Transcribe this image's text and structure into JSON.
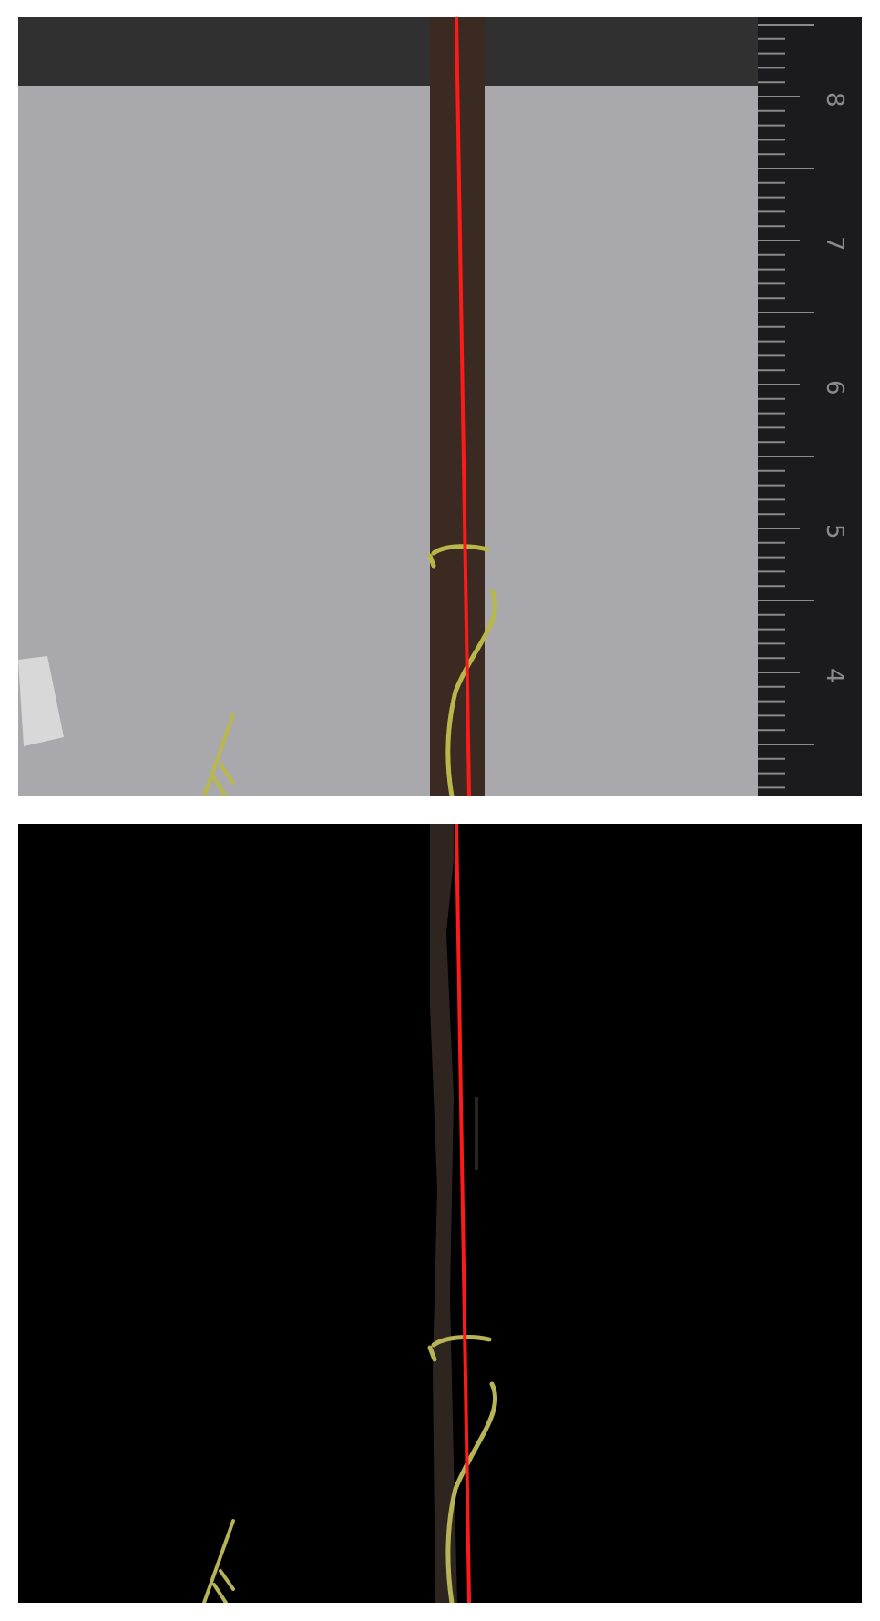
{
  "panels": [
    {
      "id": "original-photo",
      "ruler": {
        "labels": [
          "8",
          "7",
          "6",
          "5",
          "4"
        ]
      },
      "colors": {
        "background": "#a9a8ad",
        "top_band": "#303030",
        "stake": "#3a2a22",
        "ruler": "#1b1b1d",
        "ruler_marks": "#8a8a8a",
        "tendril": "#b8b84a",
        "guide_line": "#ff1a1a"
      }
    },
    {
      "id": "segmented-mask",
      "colors": {
        "background": "#000000",
        "stake": "#2e2420",
        "tendril": "#b7b457",
        "guide_line": "#ff1a1a"
      }
    }
  ]
}
